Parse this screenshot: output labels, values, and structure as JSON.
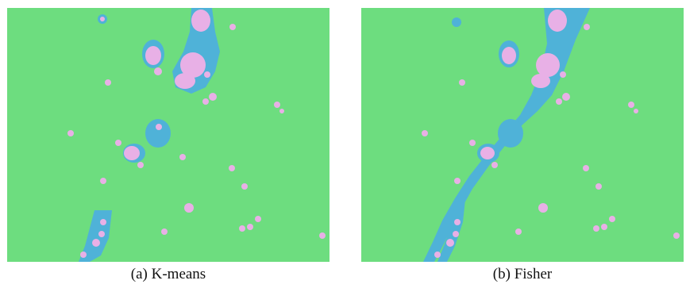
{
  "colors": {
    "background": "#6ddd7f",
    "segment_blue": "#4fb2d8",
    "segment_pink": "#e8b0e6"
  },
  "figures": [
    {
      "caption": "(a) K-means",
      "method": "K-means"
    },
    {
      "caption": "(b) Fisher",
      "method": "Fisher"
    }
  ]
}
